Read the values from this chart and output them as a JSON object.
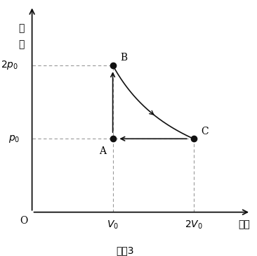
{
  "title": "",
  "caption": "図　3",
  "ylabel_line1": "圧",
  "ylabel_line2": "力",
  "xlabel": "体積",
  "origin_label": "O",
  "point_A": [
    1.0,
    1.0
  ],
  "point_B": [
    1.0,
    2.0
  ],
  "point_C": [
    2.0,
    1.0
  ],
  "label_A": "A",
  "label_B": "B",
  "label_C": "C",
  "xlim": [
    0,
    2.75
  ],
  "ylim": [
    0,
    2.85
  ],
  "background_color": "#ffffff",
  "curve_color": "#111111",
  "arrow_color": "#111111",
  "dashed_color": "#999999",
  "dot_color": "#111111",
  "dot_size": 6,
  "axis_color": "#111111",
  "font_size_label": 10,
  "font_size_tick": 10,
  "font_size_caption": 10,
  "font_size_point": 10
}
